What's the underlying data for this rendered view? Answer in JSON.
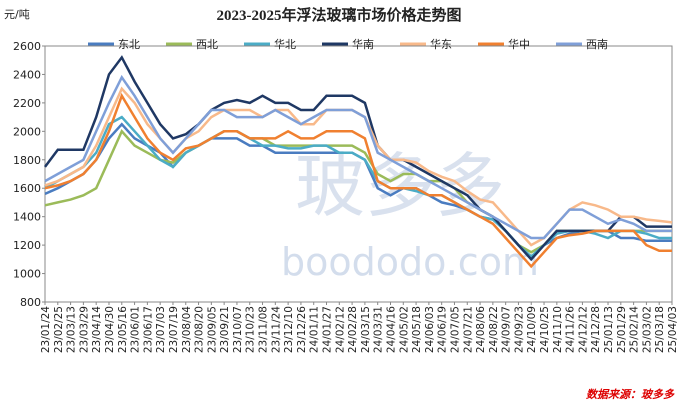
{
  "chart_data": {
    "type": "line",
    "title": "2023-2025年浮法玻璃市场价格走势图",
    "y_label": "元/吨",
    "source": "数据来源：玻多多",
    "watermark": [
      "玻多多",
      "boododo.com"
    ],
    "categories": [
      "23/01/24",
      "23/02/25",
      "23/03/13",
      "23/03/29",
      "23/04/14",
      "23/04/30",
      "23/05/16",
      "23/06/01",
      "23/06/17",
      "23/07/03",
      "23/07/19",
      "23/08/04",
      "23/08/20",
      "23/09/05",
      "23/09/21",
      "23/10/07",
      "23/10/23",
      "23/11/08",
      "23/11/24",
      "23/12/10",
      "23/12/26",
      "24/01/11",
      "24/01/27",
      "24/02/12",
      "24/02/28",
      "24/03/15",
      "24/03/31",
      "24/04/16",
      "24/05/02",
      "24/05/18",
      "24/06/03",
      "24/06/19",
      "24/07/05",
      "24/07/21",
      "24/08/06",
      "24/08/22",
      "24/09/07",
      "24/09/23",
      "24/10/09",
      "24/10/25",
      "24/11/10",
      "24/11/26",
      "24/12/12",
      "24/12/28",
      "25/01/13",
      "25/01/29",
      "25/02/14",
      "25/03/02",
      "25/03/18",
      "25/04/03"
    ],
    "ylim": [
      800,
      2600
    ],
    "yticks": [
      800,
      1000,
      1200,
      1400,
      1600,
      1800,
      2000,
      2200,
      2400,
      2600
    ],
    "series": [
      {
        "name": "东北",
        "color": "#4a7cc0",
        "values": [
          1560,
          1600,
          1650,
          1700,
          1800,
          1950,
          2050,
          1950,
          1900,
          1850,
          1750,
          1850,
          1900,
          1950,
          1950,
          1950,
          1900,
          1900,
          1850,
          1850,
          1850,
          1850,
          1850,
          1850,
          1850,
          1800,
          1600,
          1550,
          1600,
          1600,
          1550,
          1500,
          1480,
          1450,
          1400,
          1380,
          1300,
          1200,
          1100,
          1200,
          1250,
          1280,
          1300,
          1300,
          1300,
          1250,
          1250,
          1230,
          1230,
          1230
        ]
      },
      {
        "name": "西北",
        "color": "#9bbb59",
        "values": [
          1480,
          1500,
          1520,
          1550,
          1600,
          1800,
          2000,
          1900,
          1850,
          1800,
          1780,
          1850,
          1900,
          1950,
          2000,
          2000,
          1950,
          1950,
          1900,
          1900,
          1900,
          1900,
          1900,
          1900,
          1900,
          1850,
          1700,
          1650,
          1700,
          1700,
          1650,
          1650,
          1600,
          1500,
          1450,
          1400,
          1300,
          1200,
          1150,
          1200,
          1300,
          1300,
          1300,
          1300,
          1300,
          1300,
          1300,
          1300,
          1300,
          1300
        ]
      },
      {
        "name": "华北",
        "color": "#4bacc6",
        "values": [
          1600,
          1650,
          1700,
          1750,
          1850,
          2050,
          2100,
          2000,
          1900,
          1800,
          1750,
          1850,
          1900,
          1950,
          2000,
          2000,
          1950,
          1900,
          1900,
          1880,
          1880,
          1900,
          1900,
          1850,
          1850,
          1800,
          1650,
          1600,
          1600,
          1580,
          1550,
          1550,
          1500,
          1450,
          1400,
          1380,
          1300,
          1200,
          1120,
          1200,
          1280,
          1300,
          1300,
          1280,
          1250,
          1300,
          1300,
          1280,
          1250,
          1250
        ]
      },
      {
        "name": "华南",
        "color": "#1f3864",
        "values": [
          1750,
          1870,
          1870,
          1870,
          2100,
          2400,
          2520,
          2350,
          2200,
          2050,
          1950,
          1980,
          2050,
          2150,
          2200,
          2220,
          2200,
          2250,
          2200,
          2200,
          2150,
          2150,
          2250,
          2250,
          2250,
          2200,
          1900,
          1800,
          1800,
          1750,
          1700,
          1650,
          1600,
          1550,
          1450,
          1400,
          1300,
          1200,
          1100,
          1200,
          1300,
          1300,
          1300,
          1300,
          1300,
          1400,
          1400,
          1330,
          1330,
          1330
        ]
      },
      {
        "name": "华东",
        "color": "#f8b98a",
        "values": [
          1620,
          1650,
          1700,
          1750,
          1900,
          2100,
          2300,
          2200,
          2050,
          1950,
          1850,
          1950,
          2000,
          2100,
          2150,
          2150,
          2150,
          2100,
          2150,
          2150,
          2050,
          2050,
          2150,
          2150,
          2150,
          2100,
          1900,
          1800,
          1800,
          1780,
          1720,
          1680,
          1650,
          1580,
          1520,
          1500,
          1400,
          1300,
          1200,
          1250,
          1350,
          1450,
          1500,
          1480,
          1450,
          1400,
          1400,
          1380,
          1370,
          1360
        ]
      },
      {
        "name": "华中",
        "color": "#f08030",
        "values": [
          1600,
          1620,
          1650,
          1700,
          1800,
          2000,
          2250,
          2100,
          1950,
          1850,
          1800,
          1880,
          1900,
          1950,
          2000,
          2000,
          1950,
          1950,
          1950,
          2000,
          1950,
          1950,
          2000,
          2000,
          2000,
          1950,
          1650,
          1600,
          1600,
          1600,
          1550,
          1550,
          1500,
          1450,
          1400,
          1350,
          1250,
          1150,
          1050,
          1150,
          1250,
          1270,
          1280,
          1300,
          1300,
          1300,
          1300,
          1200,
          1160,
          1160
        ]
      },
      {
        "name": "西南",
        "color": "#7f9fd8",
        "values": [
          1650,
          1700,
          1750,
          1800,
          2000,
          2200,
          2380,
          2250,
          2100,
          1950,
          1850,
          1950,
          2050,
          2150,
          2150,
          2100,
          2100,
          2100,
          2150,
          2100,
          2050,
          2100,
          2150,
          2150,
          2150,
          2100,
          1850,
          1800,
          1750,
          1700,
          1650,
          1600,
          1550,
          1500,
          1450,
          1400,
          1350,
          1300,
          1250,
          1250,
          1350,
          1450,
          1450,
          1400,
          1350,
          1380,
          1350,
          1300,
          1300,
          1300
        ]
      }
    ]
  }
}
